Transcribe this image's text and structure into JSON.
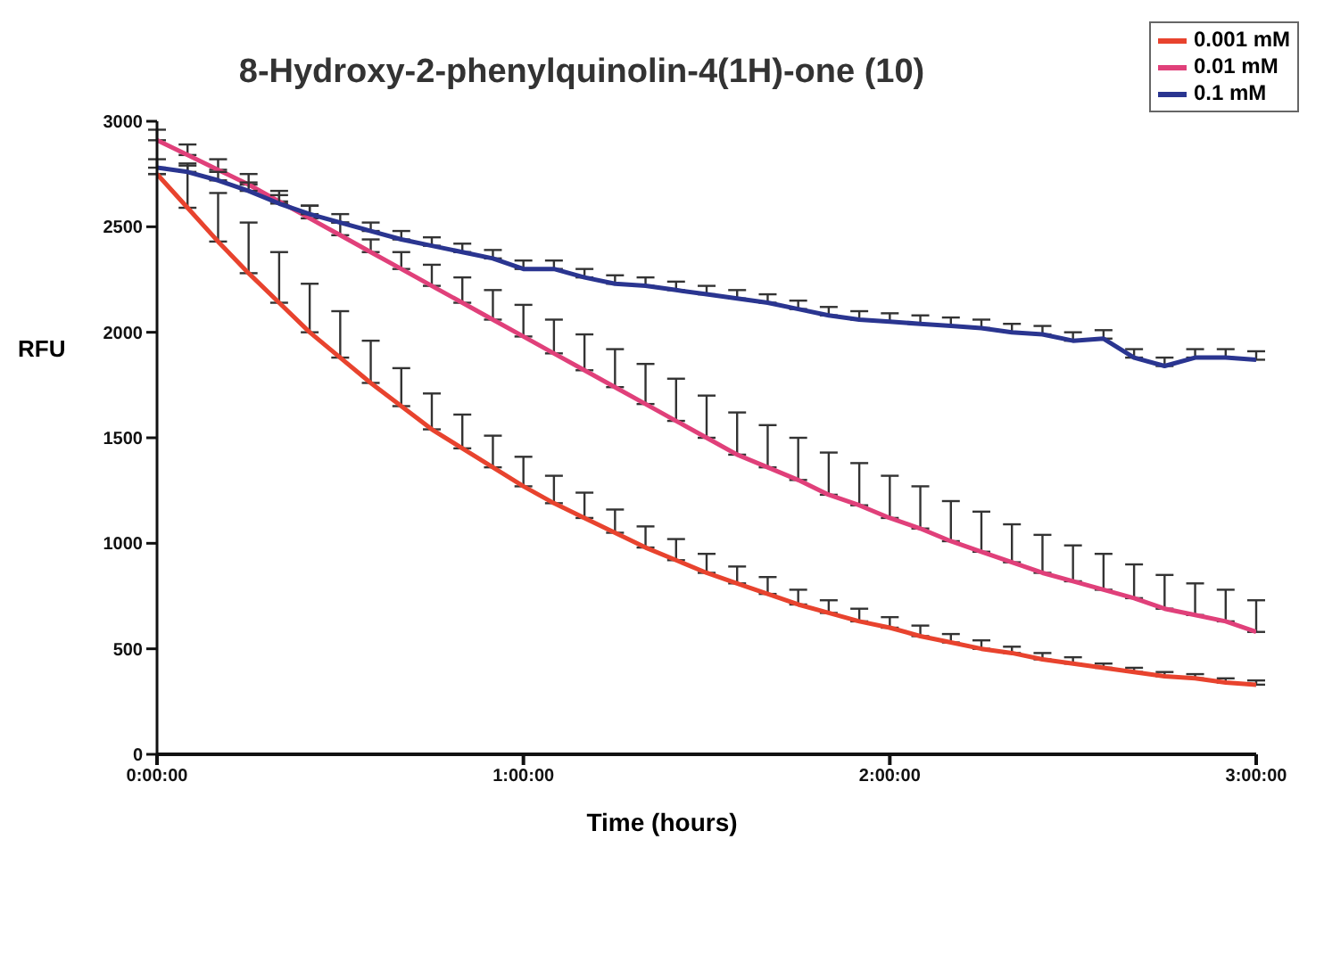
{
  "chart_data": {
    "type": "line",
    "title": "8-Hydroxy-2-phenylquinolin-4(1H)-one (10)",
    "xlabel": "Time (hours)",
    "ylabel": "RFU",
    "x": [
      0,
      0.0833,
      0.1667,
      0.25,
      0.3333,
      0.4167,
      0.5,
      0.5833,
      0.6667,
      0.75,
      0.8333,
      0.9167,
      1,
      1.0833,
      1.1667,
      1.25,
      1.3333,
      1.4167,
      1.5,
      1.5833,
      1.6667,
      1.75,
      1.8333,
      1.9167,
      2,
      2.0833,
      2.1667,
      2.25,
      2.3333,
      2.4167,
      2.5,
      2.5833,
      2.6667,
      2.75,
      2.8333,
      2.9167,
      3
    ],
    "series": [
      {
        "name": "0.001 mM",
        "color": "#e8432e",
        "values": [
          2750,
          2590,
          2430,
          2280,
          2140,
          2000,
          1880,
          1760,
          1650,
          1540,
          1450,
          1360,
          1270,
          1190,
          1120,
          1050,
          980,
          920,
          860,
          810,
          760,
          710,
          670,
          630,
          600,
          560,
          530,
          500,
          480,
          450,
          430,
          410,
          390,
          370,
          360,
          340,
          330
        ],
        "errors": [
          null,
          [
            2590,
            2790
          ],
          [
            2430,
            2660
          ],
          [
            2280,
            2520
          ],
          [
            2140,
            2380
          ],
          [
            2000,
            2230
          ],
          [
            1880,
            2100
          ],
          [
            1760,
            1960
          ],
          [
            1650,
            1830
          ],
          [
            1540,
            1710
          ],
          [
            1450,
            1610
          ],
          [
            1360,
            1510
          ],
          [
            1270,
            1410
          ],
          [
            1190,
            1320
          ],
          [
            1120,
            1240
          ],
          [
            1050,
            1160
          ],
          [
            980,
            1080
          ],
          [
            920,
            1020
          ],
          [
            860,
            950
          ],
          [
            810,
            890
          ],
          [
            760,
            840
          ],
          [
            710,
            780
          ],
          [
            670,
            730
          ],
          [
            630,
            690
          ],
          [
            600,
            650
          ],
          [
            560,
            610
          ],
          [
            530,
            570
          ],
          [
            500,
            540
          ],
          [
            480,
            510
          ],
          [
            450,
            480
          ],
          [
            430,
            460
          ],
          [
            410,
            430
          ],
          [
            390,
            410
          ],
          [
            370,
            390
          ],
          [
            360,
            380
          ],
          [
            340,
            360
          ],
          [
            330,
            350
          ]
        ]
      },
      {
        "name": "0.01 mM",
        "color": "#e0407a",
        "values": [
          2910,
          2840,
          2770,
          2700,
          2620,
          2540,
          2460,
          2380,
          2300,
          2220,
          2140,
          2060,
          1980,
          1900,
          1820,
          1740,
          1660,
          1580,
          1500,
          1420,
          1360,
          1300,
          1230,
          1180,
          1120,
          1070,
          1010,
          960,
          910,
          860,
          820,
          780,
          740,
          690,
          660,
          630,
          580
        ],
        "errors": [
          [
            2910,
            2960
          ],
          [
            2840,
            2890
          ],
          [
            2770,
            2820
          ],
          [
            2700,
            2750
          ],
          [
            2620,
            2670
          ],
          [
            2540,
            2600
          ],
          [
            2460,
            2520
          ],
          [
            2380,
            2440
          ],
          [
            2300,
            2380
          ],
          [
            2220,
            2320
          ],
          [
            2140,
            2260
          ],
          [
            2060,
            2200
          ],
          [
            1980,
            2130
          ],
          [
            1900,
            2060
          ],
          [
            1820,
            1990
          ],
          [
            1740,
            1920
          ],
          [
            1660,
            1850
          ],
          [
            1580,
            1780
          ],
          [
            1500,
            1700
          ],
          [
            1420,
            1620
          ],
          [
            1360,
            1560
          ],
          [
            1300,
            1500
          ],
          [
            1230,
            1430
          ],
          [
            1180,
            1380
          ],
          [
            1120,
            1320
          ],
          [
            1070,
            1270
          ],
          [
            1010,
            1200
          ],
          [
            960,
            1150
          ],
          [
            910,
            1090
          ],
          [
            860,
            1040
          ],
          [
            820,
            990
          ],
          [
            780,
            950
          ],
          [
            740,
            900
          ],
          [
            690,
            850
          ],
          [
            660,
            810
          ],
          [
            630,
            780
          ],
          [
            580,
            730
          ]
        ]
      },
      {
        "name": "0.1 mM",
        "color": "#2a3590",
        "values": [
          2780,
          2760,
          2720,
          2670,
          2610,
          2560,
          2520,
          2480,
          2440,
          2410,
          2380,
          2350,
          2300,
          2300,
          2260,
          2230,
          2220,
          2200,
          2180,
          2160,
          2140,
          2110,
          2080,
          2060,
          2050,
          2040,
          2030,
          2020,
          2000,
          1990,
          1960,
          1970,
          1880,
          1840,
          1880,
          1880,
          1870
        ],
        "errors": [
          [
            2780,
            2820
          ],
          [
            2760,
            2800
          ],
          [
            2720,
            2760
          ],
          [
            2670,
            2710
          ],
          [
            2610,
            2650
          ],
          [
            2560,
            2600
          ],
          [
            2520,
            2560
          ],
          [
            2480,
            2520
          ],
          [
            2440,
            2480
          ],
          [
            2410,
            2450
          ],
          [
            2380,
            2420
          ],
          [
            2350,
            2390
          ],
          [
            2300,
            2340
          ],
          [
            2300,
            2340
          ],
          [
            2260,
            2300
          ],
          [
            2230,
            2270
          ],
          [
            2220,
            2260
          ],
          [
            2200,
            2240
          ],
          [
            2180,
            2220
          ],
          [
            2160,
            2200
          ],
          [
            2140,
            2180
          ],
          [
            2110,
            2150
          ],
          [
            2080,
            2120
          ],
          [
            2060,
            2100
          ],
          [
            2050,
            2090
          ],
          [
            2040,
            2080
          ],
          [
            2030,
            2070
          ],
          [
            2020,
            2060
          ],
          [
            2000,
            2040
          ],
          [
            1990,
            2030
          ],
          [
            1960,
            2000
          ],
          [
            1970,
            2010
          ],
          [
            1880,
            1920
          ],
          [
            1840,
            1880
          ],
          [
            1880,
            1920
          ],
          [
            1880,
            1920
          ],
          [
            1870,
            1910
          ]
        ]
      }
    ],
    "xlim": [
      0,
      3
    ],
    "xticks": [
      {
        "value": 0,
        "label": "0:00:00"
      },
      {
        "value": 1,
        "label": "1:00:00"
      },
      {
        "value": 2,
        "label": "2:00:00"
      },
      {
        "value": 3,
        "label": "3:00:00"
      }
    ],
    "ylim": [
      0,
      3000
    ],
    "yticks": [
      0,
      500,
      1000,
      1500,
      2000,
      2500,
      3000
    ],
    "legend": "top right",
    "marker": "none",
    "line_style": "solid",
    "grid": false
  }
}
